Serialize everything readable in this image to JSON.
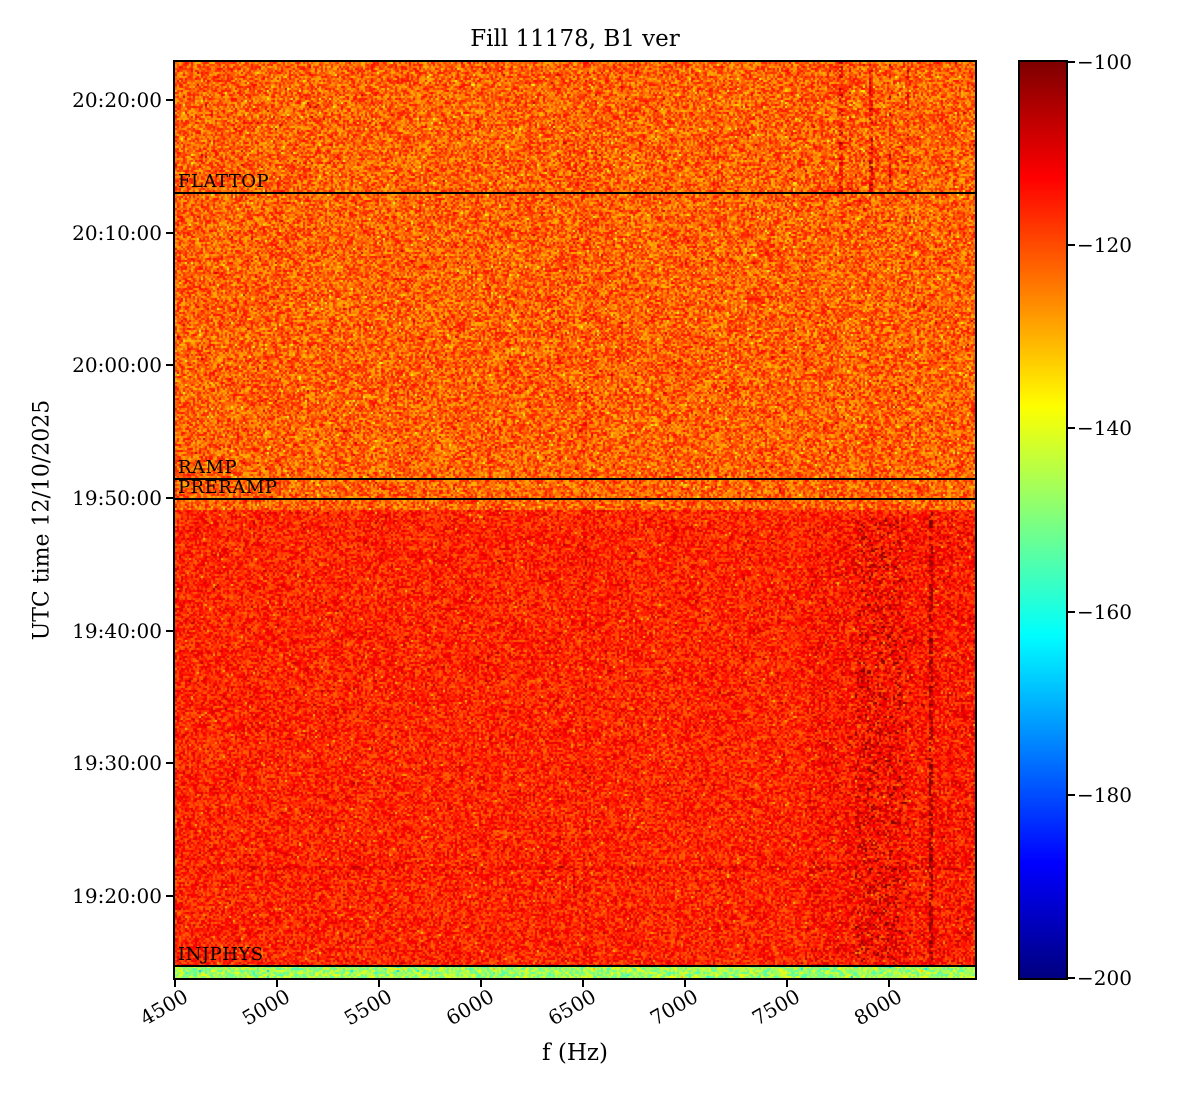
{
  "chart_data": {
    "type": "heatmap",
    "title": "Fill 11178, B1 ver",
    "xlabel": "f (Hz)",
    "ylabel": "UTC time 12/10/2025",
    "colormap": "jet",
    "seed": 11178,
    "grid": false,
    "freq_range": [
      4500,
      8420
    ],
    "x_ticks": [
      {
        "value": 4500,
        "label": "4500"
      },
      {
        "value": 5000,
        "label": "5000"
      },
      {
        "value": 5500,
        "label": "5500"
      },
      {
        "value": 6000,
        "label": "6000"
      },
      {
        "value": 6500,
        "label": "6500"
      },
      {
        "value": 7000,
        "label": "7000"
      },
      {
        "value": 7500,
        "label": "7500"
      },
      {
        "value": 8000,
        "label": "8000"
      }
    ],
    "time_range": [
      "19:13:50",
      "20:22:52"
    ],
    "y_ticks": [
      "20:20:00",
      "20:10:00",
      "20:00:00",
      "19:50:00",
      "19:40:00",
      "19:30:00",
      "19:20:00"
    ],
    "colorbar": {
      "min": -200,
      "max": -100,
      "ticks": [
        {
          "value": -100,
          "label": "−100"
        },
        {
          "value": -120,
          "label": "−120"
        },
        {
          "value": -140,
          "label": "−140"
        },
        {
          "value": -160,
          "label": "−160"
        },
        {
          "value": -180,
          "label": "−180"
        },
        {
          "value": -200,
          "label": "−200"
        }
      ]
    },
    "annotations": [
      {
        "label": "FLATTOP",
        "time": "20:13:00"
      },
      {
        "label": "RAMP",
        "time": "19:51:25"
      },
      {
        "label": "PRERAMP",
        "time": "19:49:55"
      },
      {
        "label": "INJPHYS",
        "time": "19:14:45"
      }
    ],
    "regions": [
      {
        "name": "injphys-floor",
        "t_start": "19:13:50",
        "t_end": "19:14:45",
        "base_db": -147,
        "noise_db": 9
      },
      {
        "name": "injection-plateau",
        "t_start": "19:14:45",
        "t_end": "19:49:10",
        "base_db": -116,
        "noise_db": 7
      },
      {
        "name": "ramp-and-flattop",
        "t_start": "19:49:10",
        "t_end": "20:22:52",
        "base_db": -122,
        "noise_db": 9
      }
    ],
    "default_region": {
      "base_db": -122,
      "noise_db": 9
    },
    "streaks": [
      {
        "f0": 7600,
        "f1": 8420,
        "t0": "19:14:45",
        "t1": "19:48:30",
        "boost_db": 3,
        "density": 0.55
      },
      {
        "f0": 7830,
        "f1": 8060,
        "t0": "19:14:45",
        "t1": "19:48:30",
        "boost_db": 13,
        "density": 0.18
      },
      {
        "f0": 8060,
        "f1": 8110,
        "t0": "19:14:45",
        "t1": "19:48:30",
        "boost_db": 10,
        "density": 0.1
      },
      {
        "f0": 8195,
        "f1": 8215,
        "t0": "19:14:45",
        "t1": "19:49:10",
        "boost_db": 15,
        "density": 0.6
      },
      {
        "f0": 7757,
        "f1": 7772,
        "t0": "20:12:59",
        "t1": "20:22:52",
        "boost_db": 12,
        "density": 0.7
      },
      {
        "f0": 7798,
        "f1": 7812,
        "t0": "20:11:30",
        "t1": "20:22:52",
        "boost_db": 10,
        "density": 0.5
      },
      {
        "f0": 7905,
        "f1": 7918,
        "t0": "20:12:59",
        "t1": "20:22:52",
        "boost_db": 12,
        "density": 0.7
      },
      {
        "f0": 7995,
        "f1": 8008,
        "t0": "20:12:00",
        "t1": "20:22:52",
        "boost_db": 11,
        "density": 0.55
      },
      {
        "f0": 8085,
        "f1": 8098,
        "t0": "20:13:30",
        "t1": "20:22:52",
        "boost_db": 12,
        "density": 0.6
      },
      {
        "f0": 6495,
        "f1": 6515,
        "t0": "19:13:50",
        "t1": "20:22:52",
        "boost_db": 4,
        "density": 0.5
      },
      {
        "f0": 6370,
        "f1": 6390,
        "t0": "19:13:50",
        "t1": "20:22:52",
        "boost_db": 3,
        "density": 0.35
      },
      {
        "f0": 4500,
        "f1": 8420,
        "t0": "19:21:55",
        "t1": "19:22:18",
        "boost_db": 5,
        "density": 0.5
      }
    ]
  }
}
